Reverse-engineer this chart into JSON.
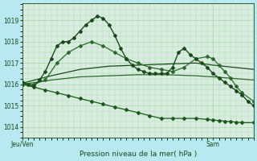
{
  "title": "Pression niveau de la mer( hPa )",
  "background_color": "#b8e8f0",
  "plot_bg_color": "#d8ede0",
  "grid_color": "#99cc99",
  "text_color": "#1a4a1a",
  "ylim": [
    1013.5,
    1019.8
  ],
  "yticks": [
    1014,
    1015,
    1016,
    1017,
    1018,
    1019
  ],
  "xlabel_left": "Jeu/Ven",
  "xlabel_right": "Sam",
  "xlim": [
    0,
    40
  ],
  "xtick_pos": [
    0,
    33
  ],
  "series": [
    {
      "x": [
        0,
        1,
        2,
        3,
        4,
        5,
        6,
        7,
        8,
        9,
        10,
        11,
        12,
        13,
        14,
        15,
        16,
        17,
        18,
        19,
        20,
        21,
        22,
        23,
        24,
        25,
        26,
        27,
        28,
        29,
        30,
        31,
        32,
        33,
        34,
        35,
        36,
        37,
        38,
        39,
        40
      ],
      "y": [
        1016.1,
        1016.0,
        1015.9,
        1016.2,
        1016.6,
        1017.2,
        1017.8,
        1018.0,
        1018.0,
        1018.2,
        1018.5,
        1018.8,
        1019.0,
        1019.2,
        1019.1,
        1018.8,
        1018.3,
        1017.7,
        1017.2,
        1016.9,
        1016.7,
        1016.6,
        1016.5,
        1016.5,
        1016.5,
        1016.5,
        1016.8,
        1017.5,
        1017.7,
        1017.4,
        1017.2,
        1017.0,
        1016.8,
        1016.5,
        1016.3,
        1016.1,
        1015.9,
        1015.7,
        1015.5,
        1015.2,
        1015.0
      ],
      "color": "#1a4a1a",
      "linewidth": 1.0,
      "marker": "D",
      "markersize": 2.0,
      "zorder": 5
    },
    {
      "x": [
        0,
        2,
        4,
        6,
        8,
        10,
        12,
        14,
        16,
        18,
        20,
        22,
        24,
        26,
        28,
        30,
        32,
        33,
        34,
        35,
        36,
        37,
        38,
        40
      ],
      "y": [
        1016.0,
        1016.0,
        1016.2,
        1017.0,
        1017.5,
        1017.8,
        1018.0,
        1017.8,
        1017.5,
        1017.2,
        1017.0,
        1016.8,
        1016.7,
        1016.6,
        1016.8,
        1017.2,
        1017.3,
        1017.2,
        1016.9,
        1016.6,
        1016.3,
        1015.9,
        1015.6,
        1015.2
      ],
      "color": "#2a6a2a",
      "linewidth": 0.9,
      "marker": "D",
      "markersize": 2.0,
      "zorder": 4
    },
    {
      "x": [
        0,
        5,
        10,
        15,
        20,
        25,
        30,
        33,
        40
      ],
      "y": [
        1016.05,
        1016.4,
        1016.7,
        1016.85,
        1016.9,
        1016.95,
        1017.0,
        1016.9,
        1016.7
      ],
      "color": "#1a4a1a",
      "linewidth": 0.9,
      "marker": null,
      "markersize": 0,
      "zorder": 3
    },
    {
      "x": [
        0,
        5,
        10,
        15,
        20,
        25,
        30,
        33,
        40
      ],
      "y": [
        1016.0,
        1016.2,
        1016.35,
        1016.4,
        1016.45,
        1016.45,
        1016.4,
        1016.35,
        1016.2
      ],
      "color": "#2a6a2a",
      "linewidth": 0.9,
      "marker": null,
      "markersize": 0,
      "zorder": 3
    },
    {
      "x": [
        0,
        2,
        4,
        6,
        8,
        10,
        12,
        14,
        16,
        18,
        20,
        22,
        24,
        26,
        28,
        30,
        32,
        33,
        34,
        35,
        36,
        37,
        38,
        40
      ],
      "y": [
        1016.0,
        1015.87,
        1015.73,
        1015.6,
        1015.47,
        1015.33,
        1015.2,
        1015.07,
        1014.93,
        1014.8,
        1014.67,
        1014.53,
        1014.4,
        1014.4,
        1014.4,
        1014.4,
        1014.35,
        1014.32,
        1014.3,
        1014.27,
        1014.25,
        1014.22,
        1014.2,
        1014.2
      ],
      "color": "#1a5a1a",
      "linewidth": 0.9,
      "marker": "D",
      "markersize": 2.0,
      "zorder": 4
    }
  ]
}
